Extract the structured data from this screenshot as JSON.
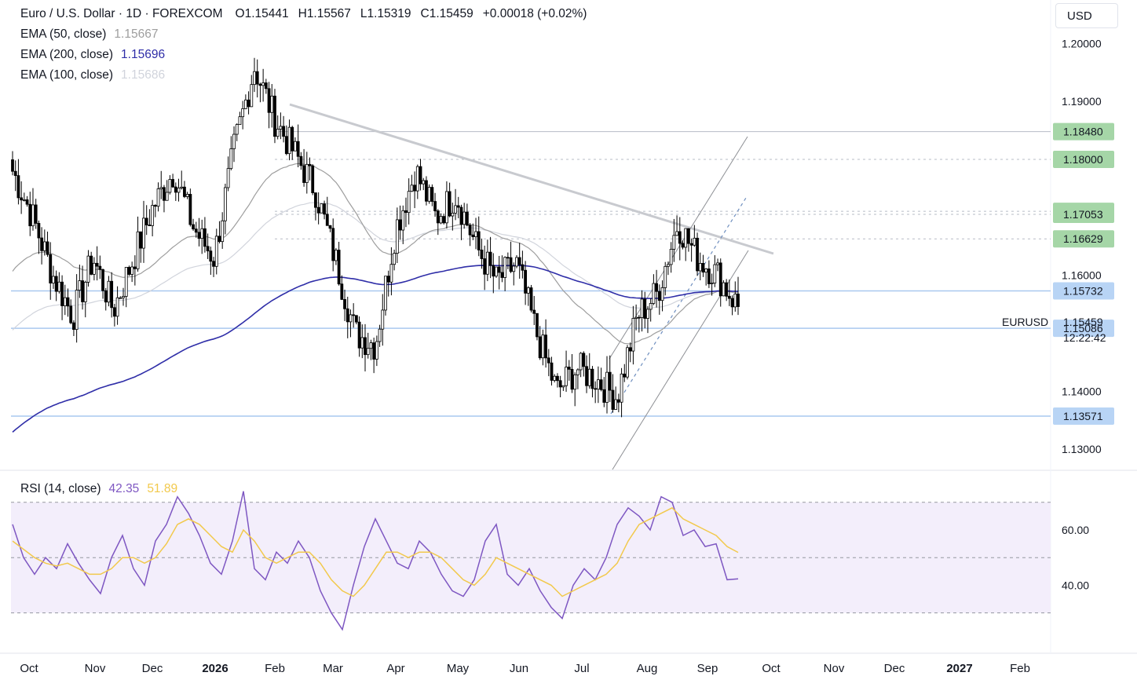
{
  "header": {
    "title": "Euro / U.S. Dollar · 1D · FOREXCOM",
    "o_label": "O",
    "o_value": "1.15441",
    "h_label": "H",
    "h_value": "1.15567",
    "l_label": "L",
    "l_value": "1.15319",
    "c_label": "C",
    "c_value": "1.15459",
    "change": "+0.00018 (+0.02%)",
    "indicators": [
      {
        "label": "EMA (50, close)",
        "value": "1.15667",
        "color": "#9e9e9e"
      },
      {
        "label": "EMA (200, close)",
        "value": "1.15696",
        "color": "#2f2ea8"
      },
      {
        "label": "EMA (100, close)",
        "value": "1.15686",
        "color": "#d1d4dc"
      }
    ]
  },
  "currency_button": "USD",
  "symbol_label": "EURUSD",
  "current_price": "1.15459",
  "countdown": "12:22:42",
  "rsi_header": {
    "label": "RSI (14, close)",
    "rsi_value": "42.35",
    "rsi_color": "#7e57c2",
    "ma_value": "51.89",
    "ma_color": "#f2c94c"
  },
  "chart_data": [
    {
      "type": "candlestick",
      "instrument": "EURUSD",
      "timeframe": "1D",
      "x_ticks": [
        "Oct",
        "Nov",
        "Dec",
        "2026",
        "Feb",
        "Mar",
        "Apr",
        "May",
        "Jun",
        "Jul",
        "Aug",
        "Sep",
        "Oct",
        "Nov",
        "Dec",
        "2027",
        "Feb"
      ],
      "y_ticks": [
        "1.20000",
        "1.19000",
        "1.16000",
        "1.14000",
        "1.13000"
      ],
      "ylim": [
        1.1265,
        1.2075
      ],
      "price_levels": [
        {
          "label": "1.18480",
          "value": 1.1848
        },
        {
          "label": "1.18000",
          "value": 1.18
        },
        {
          "label": "1.17104",
          "value": 1.17104
        },
        {
          "label": "1.17053",
          "value": 1.17053
        },
        {
          "label": "1.16629",
          "value": 1.16629
        },
        {
          "label": "1.15732",
          "value": 1.15732
        },
        {
          "label": "1.15086",
          "value": 1.15086
        },
        {
          "label": "1.13571",
          "value": 1.13571
        }
      ],
      "close_path": [
        [
          "Oct",
          1.178
        ],
        [
          "Oct",
          1.17
        ],
        [
          "Nov",
          1.16
        ],
        [
          "Nov",
          1.153
        ],
        [
          "Nov",
          1.163
        ],
        [
          "Dec",
          1.154
        ],
        [
          "Dec",
          1.163
        ],
        [
          "Dec",
          1.172
        ],
        [
          "2026",
          1.178
        ],
        [
          "2026",
          1.168
        ],
        [
          "2026",
          1.163
        ],
        [
          "Feb",
          1.182
        ],
        [
          "Feb",
          1.196
        ],
        [
          "Feb",
          1.187
        ],
        [
          "Feb",
          1.181
        ],
        [
          "Mar",
          1.175
        ],
        [
          "Mar",
          1.163
        ],
        [
          "Mar",
          1.15
        ],
        [
          "Apr",
          1.148
        ],
        [
          "Apr",
          1.168
        ],
        [
          "Apr",
          1.178
        ],
        [
          "May",
          1.17
        ],
        [
          "May",
          1.174
        ],
        [
          "May",
          1.165
        ],
        [
          "Jun",
          1.159
        ],
        [
          "Jun",
          1.162
        ],
        [
          "Jun",
          1.15
        ],
        [
          "Jul",
          1.14
        ],
        [
          "Jul",
          1.144
        ],
        [
          "Jul",
          1.142
        ],
        [
          "Aug",
          1.139
        ],
        [
          "Aug",
          1.153
        ],
        [
          "Aug",
          1.157
        ],
        [
          "Sep",
          1.169
        ],
        [
          "Sep",
          1.163
        ],
        [
          "Sep",
          1.16
        ],
        [
          "Sep",
          1.1546
        ]
      ],
      "ema_50_end": 1.15667,
      "ema_100_end": 1.15686,
      "ema_200_end": 1.15696
    },
    {
      "type": "line",
      "title": "RSI (14, close)",
      "y_ticks": [
        "60.00",
        "40.00"
      ],
      "ylim": [
        16,
        81
      ],
      "bands": [
        70,
        50,
        30
      ],
      "series": [
        {
          "name": "RSI",
          "last": 42.35,
          "values": [
            62,
            50,
            44,
            50,
            46,
            55,
            48,
            42,
            37,
            50,
            58,
            46,
            40,
            56,
            62,
            72,
            66,
            58,
            48,
            44,
            56,
            74,
            46,
            42,
            52,
            48,
            56,
            50,
            38,
            30,
            24,
            40,
            54,
            64,
            56,
            48,
            46,
            56,
            52,
            44,
            38,
            36,
            42,
            56,
            62,
            44,
            40,
            46,
            38,
            32,
            28,
            40,
            46,
            42,
            50,
            62,
            68,
            65,
            60,
            72,
            70,
            58,
            60,
            54,
            55,
            42,
            42.35
          ]
        },
        {
          "name": "RSI MA",
          "last": 51.89,
          "values": [
            56,
            53,
            50,
            48,
            47,
            48,
            46,
            44,
            44,
            46,
            50,
            50,
            48,
            50,
            55,
            62,
            64,
            62,
            58,
            54,
            52,
            60,
            56,
            50,
            48,
            50,
            52,
            52,
            48,
            42,
            38,
            36,
            40,
            46,
            52,
            52,
            50,
            52,
            52,
            50,
            46,
            42,
            40,
            44,
            50,
            48,
            46,
            44,
            42,
            40,
            36,
            38,
            40,
            42,
            44,
            48,
            56,
            62,
            64,
            66,
            68,
            64,
            62,
            60,
            58,
            54,
            51.89
          ]
        }
      ]
    }
  ]
}
